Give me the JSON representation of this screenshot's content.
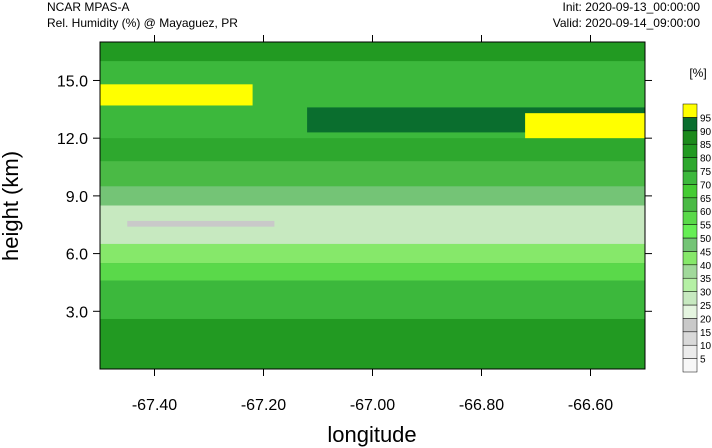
{
  "header": {
    "model": "NCAR MPAS-A",
    "subtitle": "Rel. Humidity (%) @ Mayaguez, PR",
    "init": "Init: 2020-09-13_00:00:00",
    "valid": "Valid: 2020-09-14_09:00:00"
  },
  "chart_data": {
    "type": "heatmap",
    "title": "Rel. Humidity (%) @ Mayaguez, PR",
    "xlabel": "longitude",
    "ylabel": "height (km)",
    "xlim": [
      -67.5,
      -66.5
    ],
    "ylim": [
      0,
      17
    ],
    "x_ticks": [
      -67.4,
      -67.2,
      -67.0,
      -66.8,
      -66.6
    ],
    "x_tick_labels": [
      "-67.40",
      "-67.20",
      "-67.00",
      "-66.80",
      "-66.60"
    ],
    "y_ticks": [
      3.0,
      6.0,
      9.0,
      12.0,
      15.0
    ],
    "y_tick_labels": [
      "3.0",
      "6.0",
      "9.0",
      "12.0",
      "15.0"
    ],
    "colorbar": {
      "unit": "[%]",
      "levels": [
        5,
        10,
        15,
        20,
        25,
        30,
        35,
        40,
        45,
        50,
        55,
        60,
        65,
        70,
        75,
        80,
        85,
        90,
        95
      ],
      "colors": [
        "#f7f7f7",
        "#ececec",
        "#d9d9d9",
        "#c9c9c9",
        "#e5f5e0",
        "#c7e9c0",
        "#b5f0a5",
        "#a1d99b",
        "#86e86a",
        "#74c476",
        "#66ee55",
        "#5ad94a",
        "#4aba45",
        "#44cc33",
        "#3cb83c",
        "#2ea82e",
        "#229a22",
        "#1c8a1c",
        "#0a6e2e",
        "#ffff00"
      ]
    },
    "layers": [
      {
        "z_pct": 80,
        "y_top": 17.0,
        "y_bot": 16.0
      },
      {
        "z_pct": 70,
        "y_top": 16.0,
        "y_bot": 14.5
      },
      {
        "z_pct": 92,
        "y_top": 13.6,
        "y_bot": 12.3,
        "x_from": -67.12,
        "x_to": -66.5
      },
      {
        "z_pct": 96,
        "y_top": 14.8,
        "y_bot": 13.7,
        "x_from": -67.5,
        "x_to": -67.22
      },
      {
        "z_pct": 96,
        "y_top": 13.3,
        "y_bot": 11.7,
        "x_from": -66.72,
        "x_to": -66.5
      },
      {
        "z_pct": 75,
        "y_top": 12.0,
        "y_bot": 10.8
      },
      {
        "z_pct": 60,
        "y_top": 10.8,
        "y_bot": 9.5
      },
      {
        "z_pct": 45,
        "y_top": 9.5,
        "y_bot": 8.5
      },
      {
        "z_pct": 25,
        "y_top": 8.5,
        "y_bot": 6.5
      },
      {
        "z_pct": 18,
        "y_top": 7.7,
        "y_bot": 7.4,
        "x_from": -67.45,
        "x_to": -67.18
      },
      {
        "z_pct": 40,
        "y_top": 6.5,
        "y_bot": 5.5
      },
      {
        "z_pct": 55,
        "y_top": 5.5,
        "y_bot": 4.6
      },
      {
        "z_pct": 70,
        "y_top": 4.6,
        "y_bot": 2.6
      },
      {
        "z_pct": 80,
        "y_top": 2.6,
        "y_bot": 0.0
      }
    ]
  }
}
